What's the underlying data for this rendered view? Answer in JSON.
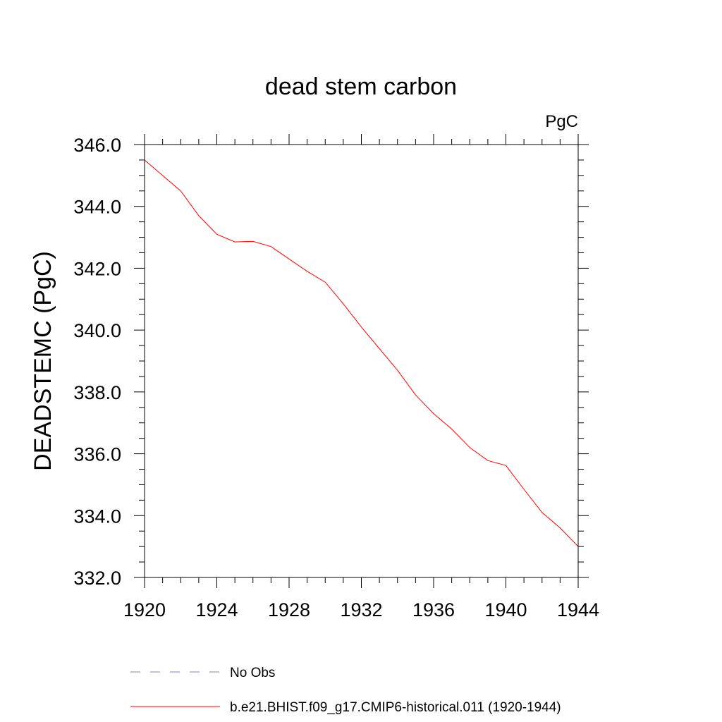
{
  "chart_data": {
    "type": "line",
    "title": "dead stem carbon",
    "units_label": "PgC",
    "xlabel": "",
    "ylabel": "DEADSTEMC  (PgC)",
    "xlim": [
      1920,
      1944
    ],
    "ylim": [
      332.0,
      346.0
    ],
    "x_ticks": [
      "1920",
      "1924",
      "1928",
      "1932",
      "1936",
      "1940",
      "1944"
    ],
    "y_ticks": [
      "332.0",
      "334.0",
      "336.0",
      "338.0",
      "340.0",
      "342.0",
      "344.0",
      "346.0"
    ],
    "grid": false,
    "legend_placement": "bottom",
    "series": [
      {
        "name": "No Obs",
        "color": "#8a7fd0",
        "style": "dashed",
        "x": [],
        "y": []
      },
      {
        "name": "b.e21.BHIST.f09_g17.CMIP6-historical.011 (1920-1944)",
        "color": "#ff0000",
        "style": "solid",
        "x": [
          1920,
          1921,
          1922,
          1923,
          1924,
          1925,
          1926,
          1927,
          1928,
          1929,
          1930,
          1931,
          1932,
          1933,
          1934,
          1935,
          1936,
          1937,
          1938,
          1939,
          1940,
          1941,
          1942,
          1943,
          1944
        ],
        "y": [
          345.5,
          345.0,
          344.5,
          343.7,
          343.1,
          342.85,
          342.87,
          342.7,
          342.3,
          341.9,
          341.55,
          340.85,
          340.1,
          339.4,
          338.7,
          337.9,
          337.3,
          336.8,
          336.2,
          335.78,
          335.62,
          334.85,
          334.1,
          333.6,
          333.0
        ]
      }
    ]
  }
}
